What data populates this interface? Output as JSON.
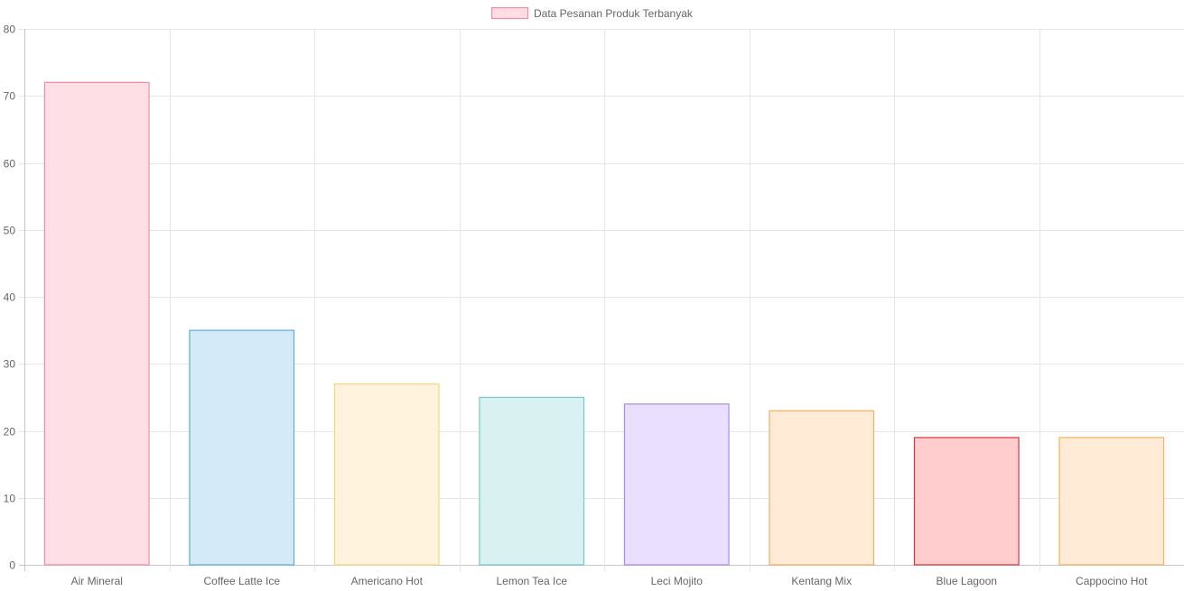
{
  "chart_data": {
    "type": "bar",
    "categories": [
      "Air Mineral",
      "Coffee Latte Ice",
      "Americano Hot",
      "Lemon Tea Ice",
      "Leci Mojito",
      "Kentang Mix",
      "Blue Lagoon",
      "Cappocino Hot"
    ],
    "series": [
      {
        "name": "Data Pesanan Produk Terbanyak",
        "values": [
          72,
          35,
          27,
          25,
          24,
          23,
          19,
          19
        ]
      }
    ],
    "ylim": [
      0,
      80
    ],
    "yticks": [
      0,
      10,
      20,
      30,
      40,
      50,
      60,
      70,
      80
    ],
    "grid": true,
    "legend_position": "top-center",
    "legend_fill": "#ffdde3",
    "legend_border": "#f08ca4",
    "bar_fills": [
      "#ffdfe6",
      "#d5eaf9",
      "#fff3dd",
      "#d9f1f1",
      "#ebdfff",
      "#ffebd6",
      "#ffcdcd",
      "#ffebd6"
    ],
    "bar_borders": [
      "#f08ca4",
      "#5aacde",
      "#f9d675",
      "#74c9c9",
      "#a98ae8",
      "#f4ae5e",
      "#d6363d",
      "#f1b45e"
    ]
  }
}
